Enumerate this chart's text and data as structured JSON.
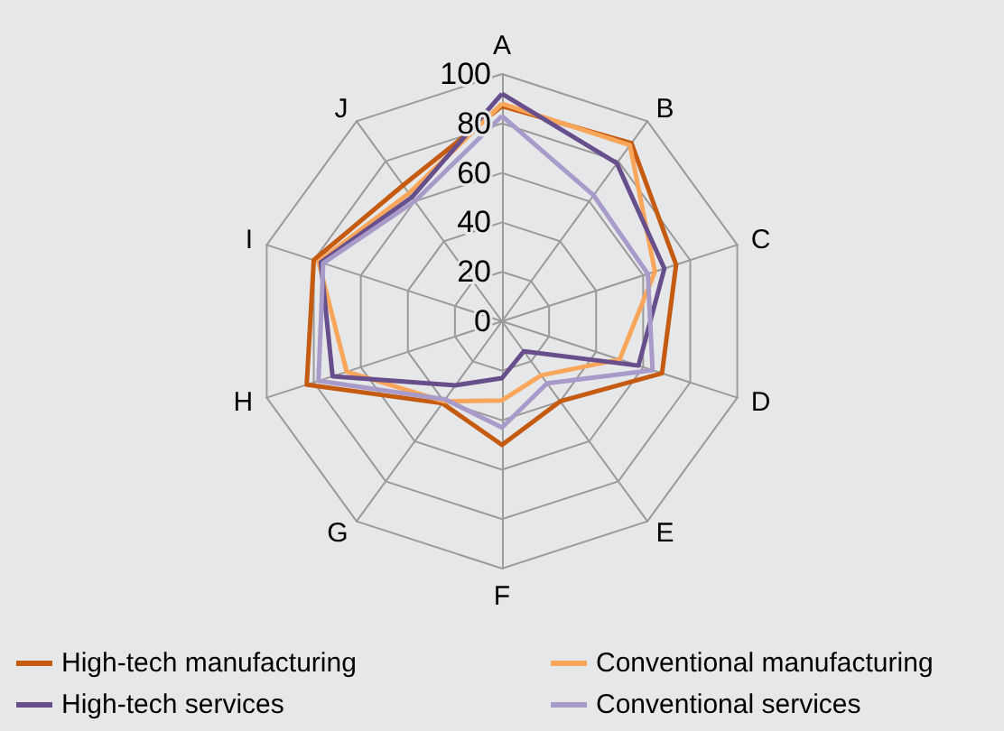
{
  "chart_data": {
    "type": "radar",
    "categories": [
      "A",
      "B",
      "C",
      "D",
      "E",
      "F",
      "G",
      "H",
      "I",
      "J"
    ],
    "ylim": [
      0,
      100
    ],
    "yticks": [
      0,
      20,
      40,
      60,
      80,
      100
    ],
    "grid": true,
    "legend": "bottom",
    "series": [
      {
        "name": "High-tech manufacturing",
        "color": "#c55a11",
        "values": [
          87,
          89,
          74,
          68,
          40,
          50,
          41,
          83,
          80,
          68
        ]
      },
      {
        "name": "Conventional manufacturing",
        "color": "#f9a65a",
        "values": [
          88,
          88,
          65,
          50,
          27,
          32,
          40,
          66,
          78,
          64
        ]
      },
      {
        "name": "High-tech services",
        "color": "#674f8c",
        "values": [
          92,
          79,
          69,
          58,
          15,
          23,
          32,
          72,
          77,
          62
        ]
      },
      {
        "name": "Conventional services",
        "color": "#a99bc9",
        "values": [
          83,
          63,
          62,
          64,
          31,
          43,
          39,
          78,
          76,
          60
        ]
      }
    ]
  }
}
